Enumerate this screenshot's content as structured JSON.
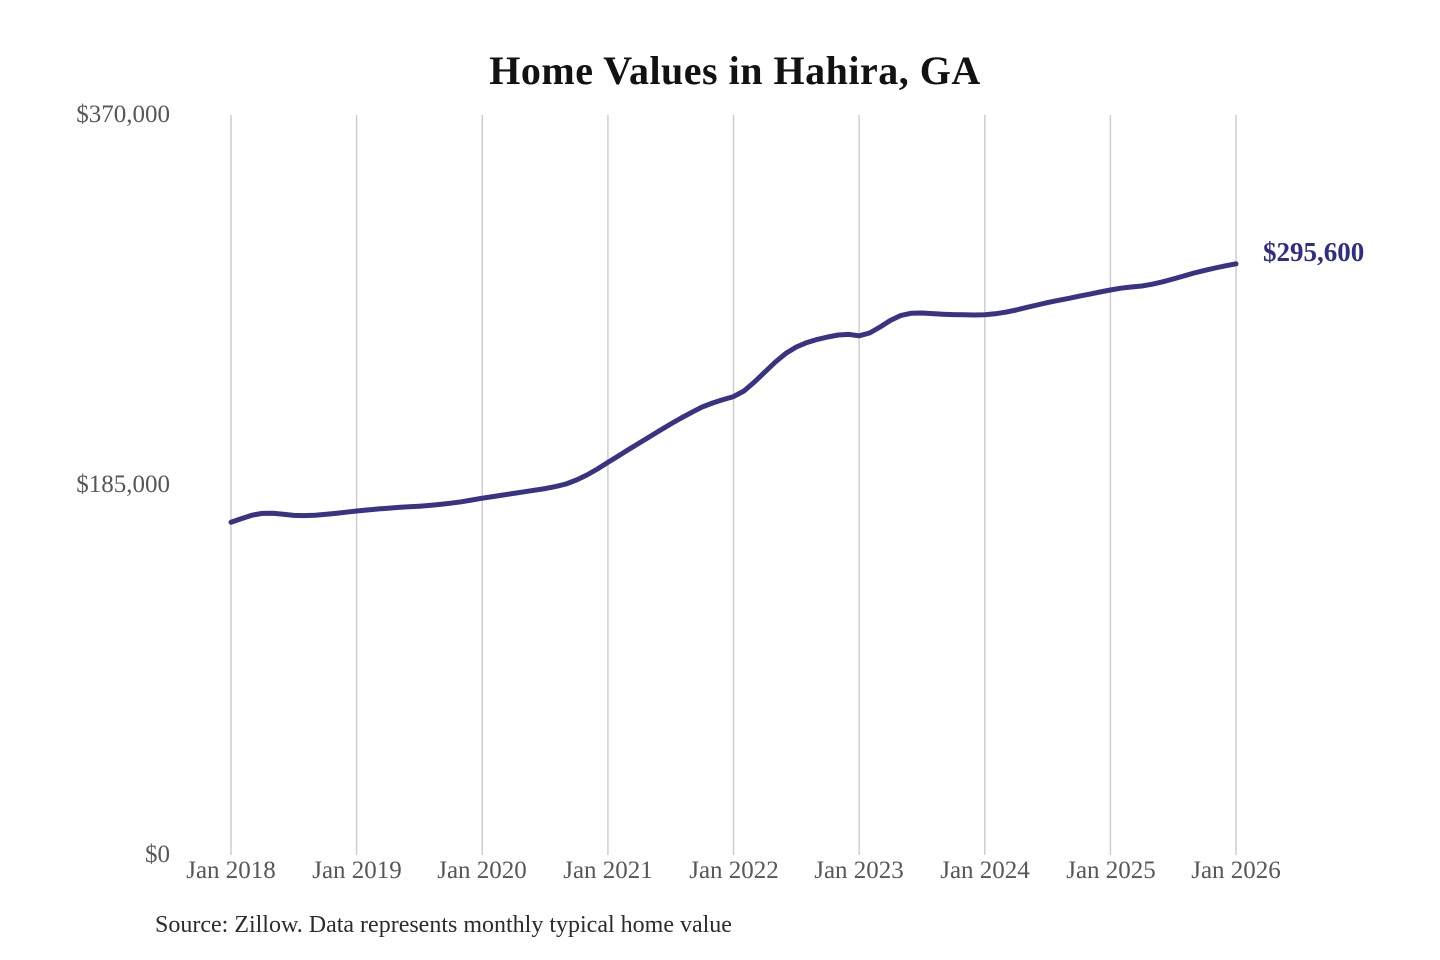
{
  "title": "Home Values in Hahira, GA",
  "footer": {
    "source": "Source: Zillow. Data represents monthly typical home value"
  },
  "colors": {
    "background": "#ffffff",
    "line": "#3a3383",
    "end_label_text": "#302e83",
    "grid": "#cbcbcb",
    "tick_text": "#57575b",
    "title_text": "#121212",
    "source_text": "#2c2c2c"
  },
  "chart_data": {
    "type": "line",
    "title": "Home Values in Hahira, GA",
    "unit": "USD",
    "interval": "monthly",
    "x_start": "Jan 2018",
    "x_end": "Jan 2026",
    "categories": [
      "Jan 2018",
      "Jan 2019",
      "Jan 2020",
      "Jan 2021",
      "Jan 2022",
      "Jan 2023",
      "Jan 2024",
      "Jan 2025",
      "Jan 2026"
    ],
    "y_tick_labels": [
      "$370,000",
      "$185,000",
      "$0"
    ],
    "y_ticks": [
      0,
      185000,
      370000
    ],
    "ylim": [
      0,
      370000
    ],
    "grid": "vertical-only",
    "legend": "none",
    "end_label": "$295,600",
    "end_value": 295600,
    "series_name": "Typical home value",
    "values": [
      166400,
      168200,
      169900,
      170800,
      170900,
      170400,
      169800,
      169700,
      169900,
      170300,
      170800,
      171400,
      172000,
      172500,
      173000,
      173400,
      173800,
      174100,
      174400,
      174800,
      175300,
      175900,
      176600,
      177500,
      178400,
      179200,
      180000,
      180800,
      181600,
      182400,
      183200,
      184200,
      185500,
      187500,
      190000,
      193000,
      196300,
      199500,
      202800,
      206000,
      209200,
      212400,
      215500,
      218500,
      221300,
      224000,
      226000,
      227700,
      229200,
      232000,
      236500,
      241500,
      246500,
      250800,
      254000,
      256200,
      257800,
      259000,
      260000,
      260300,
      259600,
      261000,
      264000,
      267300,
      269800,
      270900,
      271000,
      270700,
      270400,
      270200,
      270100,
      270000,
      270100,
      270600,
      271400,
      272500,
      273800,
      275000,
      276200,
      277300,
      278300,
      279400,
      280400,
      281500,
      282500,
      283400,
      284000,
      284500,
      285400,
      286600,
      288000,
      289500,
      291000,
      292300,
      293500,
      294600,
      295600
    ]
  }
}
